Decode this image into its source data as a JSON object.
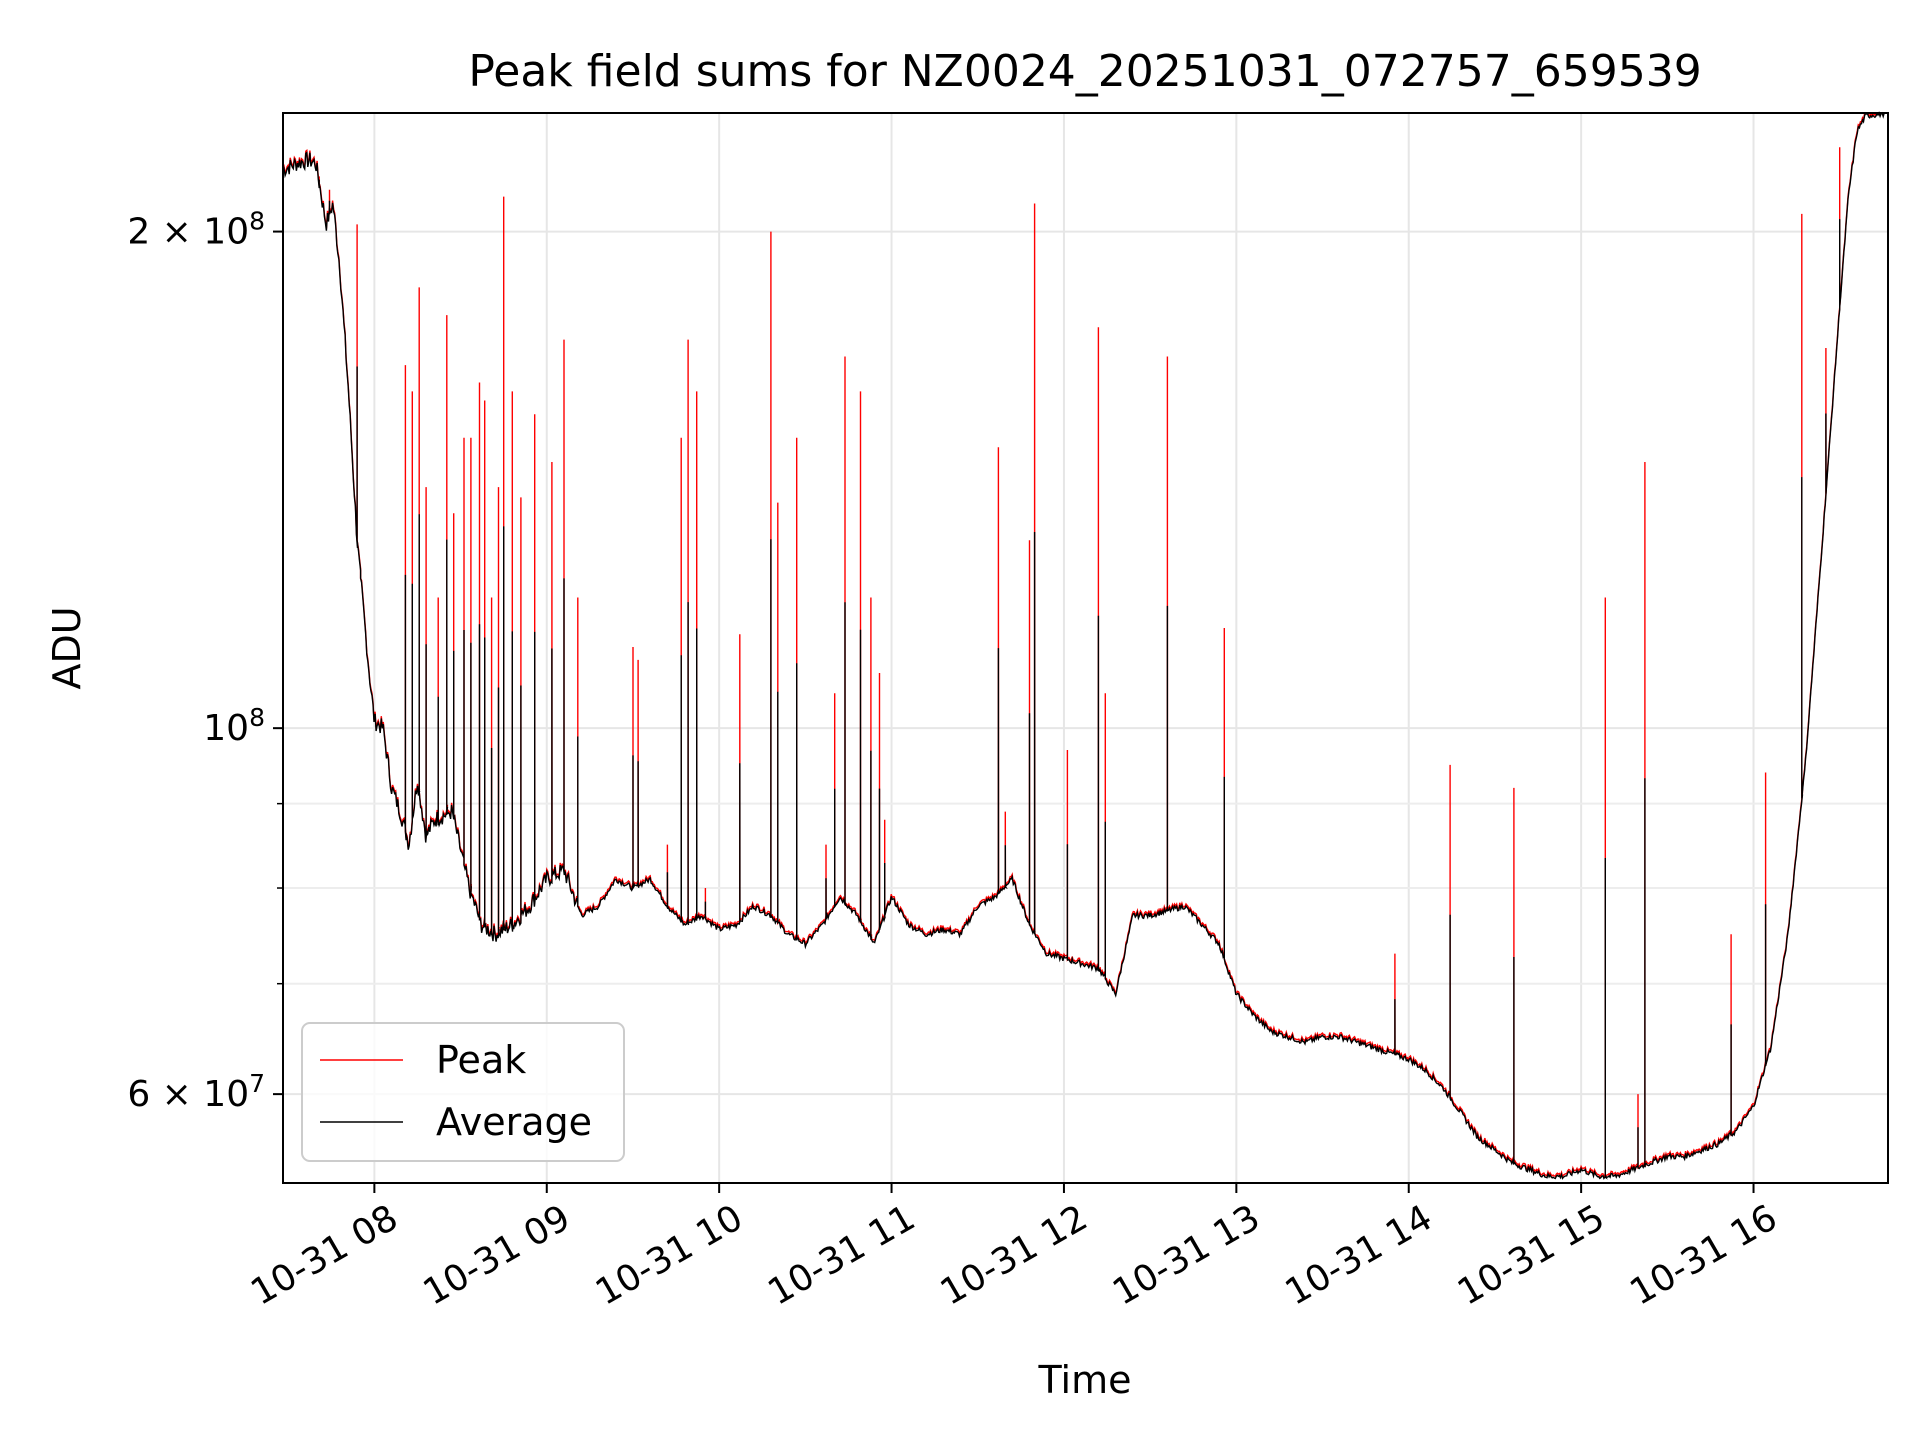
{
  "chart_data": {
    "type": "line",
    "title": "Peak field sums for NZ0024_20251031_072757_659539",
    "xlabel": "Time",
    "ylabel": "ADU",
    "yscale": "log",
    "grid": true,
    "legend_location": "lower-left",
    "x_unit": "hours (decimal, 2025-10-31)",
    "xlim": [
      7.47,
      16.78
    ],
    "ylim": [
      53000000.0,
      236000000.0
    ],
    "x_ticks": [
      {
        "value": 8,
        "label": "10-31 08"
      },
      {
        "value": 9,
        "label": "10-31 09"
      },
      {
        "value": 10,
        "label": "10-31 10"
      },
      {
        "value": 11,
        "label": "10-31 11"
      },
      {
        "value": 12,
        "label": "10-31 12"
      },
      {
        "value": 13,
        "label": "10-31 13"
      },
      {
        "value": 14,
        "label": "10-31 14"
      },
      {
        "value": 15,
        "label": "10-31 15"
      },
      {
        "value": 16,
        "label": "10-31 16"
      }
    ],
    "y_ticks_major": [
      {
        "value": 60000000,
        "base": "6",
        "exp": "7",
        "label": "6 × 10^7"
      },
      {
        "value": 100000000,
        "base": "",
        "exp": "8",
        "label": "10^8"
      },
      {
        "value": 200000000,
        "base": "2",
        "exp": "8",
        "label": "2 × 10^8"
      }
    ],
    "y_ticks_minor": [
      70000000,
      80000000,
      90000000
    ],
    "series": [
      {
        "name": "Peak",
        "color": "#ff0000",
        "spikes": [
          [
            7.68,
            216000000.0
          ],
          [
            7.74,
            212000000.0
          ],
          [
            7.9,
            202000000.0
          ],
          [
            7.92,
            125000000.0
          ],
          [
            8.18,
            166000000.0
          ],
          [
            8.22,
            160000000.0
          ],
          [
            8.26,
            185000000.0
          ],
          [
            8.3,
            140000000.0
          ],
          [
            8.37,
            120000000.0
          ],
          [
            8.42,
            178000000.0
          ],
          [
            8.46,
            135000000.0
          ],
          [
            8.52,
            150000000.0
          ],
          [
            8.56,
            150000000.0
          ],
          [
            8.61,
            162000000.0
          ],
          [
            8.64,
            158000000.0
          ],
          [
            8.68,
            120000000.0
          ],
          [
            8.72,
            140000000.0
          ],
          [
            8.75,
            210000000.0
          ],
          [
            8.8,
            160000000.0
          ],
          [
            8.85,
            138000000.0
          ],
          [
            8.93,
            155000000.0
          ],
          [
            9.03,
            145000000.0
          ],
          [
            9.1,
            172000000.0
          ],
          [
            9.18,
            120000000.0
          ],
          [
            9.5,
            112000000.0
          ],
          [
            9.53,
            110000000.0
          ],
          [
            9.7,
            85000000.0
          ],
          [
            9.78,
            150000000.0
          ],
          [
            9.82,
            172000000.0
          ],
          [
            9.87,
            160000000.0
          ],
          [
            9.92,
            80000000.0
          ],
          [
            10.12,
            114000000.0
          ],
          [
            10.3,
            200000000.0
          ],
          [
            10.34,
            137000000.0
          ],
          [
            10.45,
            150000000.0
          ],
          [
            10.62,
            85000000.0
          ],
          [
            10.67,
            105000000.0
          ],
          [
            10.73,
            168000000.0
          ],
          [
            10.82,
            160000000.0
          ],
          [
            10.88,
            120000000.0
          ],
          [
            10.93,
            108000000.0
          ],
          [
            10.96,
            88000000.0
          ],
          [
            11.62,
            148000000.0
          ],
          [
            11.66,
            89000000.0
          ],
          [
            11.8,
            130000000.0
          ],
          [
            11.83,
            208000000.0
          ],
          [
            12.02,
            97000000.0
          ],
          [
            12.2,
            175000000.0
          ],
          [
            12.24,
            105000000.0
          ],
          [
            12.6,
            168000000.0
          ],
          [
            12.93,
            115000000.0
          ],
          [
            13.92,
            73000000.0
          ],
          [
            14.24,
            95000000.0
          ],
          [
            14.61,
            92000000.0
          ],
          [
            15.14,
            120000000.0
          ],
          [
            15.33,
            60000000.0
          ],
          [
            15.37,
            145000000.0
          ],
          [
            15.87,
            75000000.0
          ],
          [
            16.07,
            94000000.0
          ],
          [
            16.28,
            205000000.0
          ],
          [
            16.42,
            170000000.0
          ],
          [
            16.5,
            225000000.0
          ]
        ]
      },
      {
        "name": "Average",
        "color": "#000000",
        "points": [
          [
            7.47,
            218000000.0
          ],
          [
            7.55,
            220000000.0
          ],
          [
            7.62,
            221000000.0
          ],
          [
            7.66,
            220000000.0
          ],
          [
            7.7,
            208000000.0
          ],
          [
            7.72,
            202000000.0
          ],
          [
            7.76,
            208000000.0
          ],
          [
            7.8,
            190000000.0
          ],
          [
            7.85,
            160000000.0
          ],
          [
            7.9,
            130000000.0
          ],
          [
            7.93,
            120000000.0
          ],
          [
            7.97,
            108000000.0
          ],
          [
            8.0,
            101000000.0
          ],
          [
            8.05,
            100000000.0
          ],
          [
            8.1,
            92000000.0
          ],
          [
            8.15,
            89000000.0
          ],
          [
            8.2,
            85000000.0
          ],
          [
            8.25,
            93000000.0
          ],
          [
            8.3,
            86000000.0
          ],
          [
            8.35,
            88000000.0
          ],
          [
            8.45,
            89000000.0
          ],
          [
            8.55,
            80000000.0
          ],
          [
            8.62,
            76000000.0
          ],
          [
            8.7,
            75000000.0
          ],
          [
            8.8,
            76000000.0
          ],
          [
            8.9,
            78000000.0
          ],
          [
            9.0,
            81000000.0
          ],
          [
            9.1,
            82000000.0
          ],
          [
            9.2,
            77000000.0
          ],
          [
            9.3,
            78000000.0
          ],
          [
            9.4,
            81000000.0
          ],
          [
            9.5,
            80000000.0
          ],
          [
            9.6,
            81000000.0
          ],
          [
            9.7,
            78000000.0
          ],
          [
            9.8,
            76000000.0
          ],
          [
            9.9,
            77000000.0
          ],
          [
            10.0,
            75500000.0
          ],
          [
            10.1,
            76000000.0
          ],
          [
            10.2,
            78000000.0
          ],
          [
            10.3,
            77000000.0
          ],
          [
            10.4,
            75000000.0
          ],
          [
            10.5,
            74000000.0
          ],
          [
            10.6,
            76000000.0
          ],
          [
            10.7,
            79000000.0
          ],
          [
            10.8,
            77000000.0
          ],
          [
            10.9,
            74000000.0
          ],
          [
            11.0,
            79000000.0
          ],
          [
            11.1,
            76000000.0
          ],
          [
            11.2,
            75000000.0
          ],
          [
            11.3,
            75500000.0
          ],
          [
            11.4,
            75000000.0
          ],
          [
            11.5,
            78000000.0
          ],
          [
            11.6,
            79000000.0
          ],
          [
            11.7,
            81000000.0
          ],
          [
            11.8,
            76000000.0
          ],
          [
            11.9,
            73000000.0
          ],
          [
            12.0,
            72500000.0
          ],
          [
            12.1,
            72000000.0
          ],
          [
            12.2,
            71500000.0
          ],
          [
            12.3,
            69000000.0
          ],
          [
            12.4,
            77000000.0
          ],
          [
            12.5,
            77000000.0
          ],
          [
            12.6,
            77500000.0
          ],
          [
            12.7,
            78000000.0
          ],
          [
            12.8,
            76000000.0
          ],
          [
            12.9,
            74000000.0
          ],
          [
            13.0,
            69000000.0
          ],
          [
            13.1,
            67000000.0
          ],
          [
            13.2,
            65500000.0
          ],
          [
            13.3,
            65000000.0
          ],
          [
            13.4,
            64500000.0
          ],
          [
            13.5,
            65000000.0
          ],
          [
            13.6,
            65000000.0
          ],
          [
            13.7,
            64500000.0
          ],
          [
            13.8,
            64000000.0
          ],
          [
            13.9,
            63500000.0
          ],
          [
            14.0,
            63000000.0
          ],
          [
            14.1,
            62000000.0
          ],
          [
            14.2,
            60500000.0
          ],
          [
            14.3,
            58500000.0
          ],
          [
            14.4,
            56500000.0
          ],
          [
            14.5,
            55500000.0
          ],
          [
            14.6,
            54500000.0
          ],
          [
            14.7,
            54000000.0
          ],
          [
            14.8,
            53500000.0
          ],
          [
            14.9,
            53500000.0
          ],
          [
            15.0,
            54000000.0
          ],
          [
            15.1,
            53500000.0
          ],
          [
            15.2,
            53500000.0
          ],
          [
            15.3,
            54000000.0
          ],
          [
            15.4,
            54500000.0
          ],
          [
            15.5,
            55000000.0
          ],
          [
            15.6,
            55000000.0
          ],
          [
            15.7,
            55500000.0
          ],
          [
            15.8,
            56000000.0
          ],
          [
            15.9,
            57000000.0
          ],
          [
            16.0,
            59000000.0
          ],
          [
            16.1,
            64000000.0
          ],
          [
            16.2,
            75000000.0
          ],
          [
            16.3,
            95000000.0
          ],
          [
            16.4,
            130000000.0
          ],
          [
            16.5,
            180000000.0
          ],
          [
            16.55,
            210000000.0
          ],
          [
            16.6,
            230000000.0
          ],
          [
            16.65,
            235000000.0
          ],
          [
            16.78,
            236000000.0
          ]
        ]
      }
    ]
  }
}
